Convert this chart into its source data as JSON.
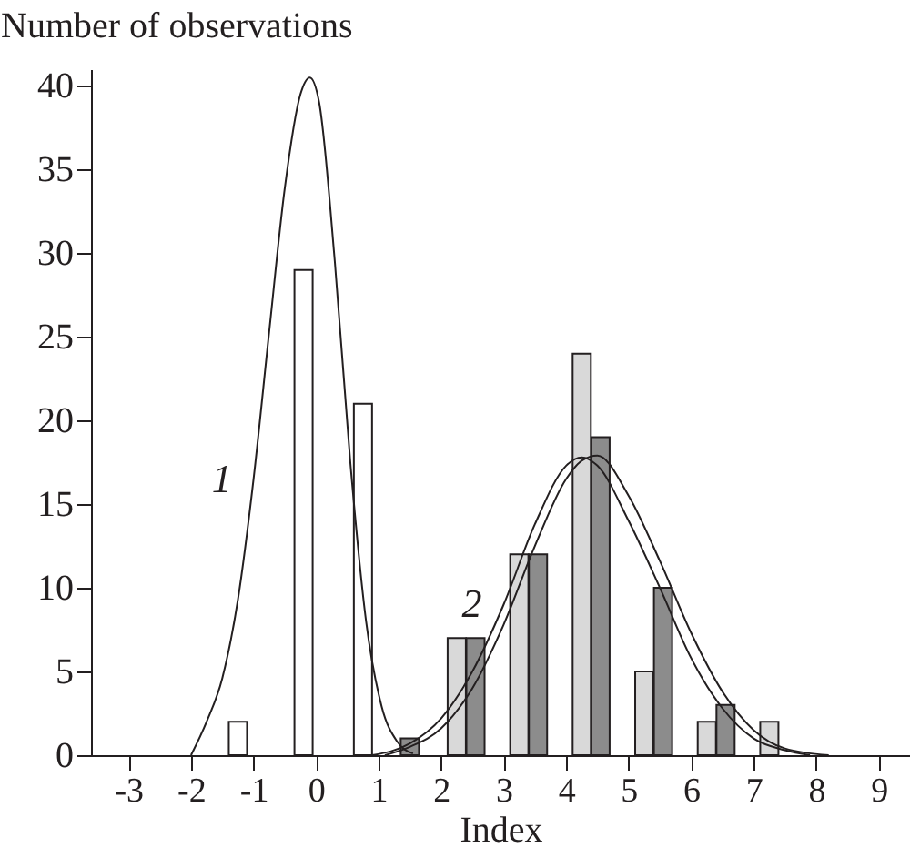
{
  "chart_data": {
    "type": "bar",
    "xlabel": "Index",
    "ylabel": "Number of observations",
    "xlim": [
      -3.6,
      9.5
    ],
    "xticks": [
      -3,
      -2,
      -1,
      0,
      1,
      2,
      3,
      4,
      5,
      6,
      7,
      8,
      9
    ],
    "ylim": [
      0,
      41
    ],
    "yticks": [
      0,
      5,
      10,
      15,
      20,
      25,
      30,
      35,
      40
    ],
    "grid": false,
    "marker": "none",
    "annotations": [
      "1",
      "2"
    ],
    "series": [
      {
        "color": "#ffffff",
        "x": [
          -1.25,
          -0.2,
          0.75
        ],
        "values": [
          2,
          29,
          21
        ]
      },
      {
        "color": "#d9d9d9",
        "x": [
          2.25,
          3.25,
          4.25,
          5.25,
          6.25,
          7.25
        ],
        "values": [
          7,
          12,
          24,
          5,
          2,
          2
        ]
      },
      {
        "color": "#8c8c8c",
        "x": [
          1.5,
          2.55,
          3.55,
          4.55,
          5.55,
          6.55
        ],
        "values": [
          1,
          7,
          12,
          19,
          10,
          3
        ]
      },
      {
        "type": "line",
        "color": "#231f20",
        "x": [
          -2,
          -1.75,
          -1.5,
          -1.25,
          -1,
          -0.75,
          -0.5,
          -0.25,
          -0.1,
          0.05,
          0.3,
          0.55,
          0.8,
          1.05,
          1.3,
          1.55
        ],
        "values": [
          0,
          2,
          4.6,
          9.3,
          16.5,
          25.3,
          33.9,
          39.5,
          40.5,
          39,
          29.5,
          17.4,
          8,
          2.9,
          0.8,
          0.1
        ]
      },
      {
        "type": "line",
        "color": "#231f20",
        "x": [
          0.9,
          1.5,
          2,
          2.5,
          3,
          3.5,
          4,
          4.25,
          4.5,
          5,
          5.5,
          6,
          6.5,
          7,
          7.5,
          7.9
        ],
        "values": [
          0,
          0.7,
          2.2,
          5,
          9,
          13.8,
          17.3,
          17.8,
          17.3,
          14,
          10,
          5.8,
          2.8,
          1,
          0.3,
          0
        ]
      },
      {
        "type": "line",
        "color": "#231f20",
        "x": [
          1.1,
          1.5,
          2,
          2.5,
          3,
          3.5,
          4,
          4.25,
          4.5,
          5,
          5.5,
          6,
          6.5,
          7,
          7.5,
          8.2
        ],
        "values": [
          0,
          0.5,
          1.6,
          4,
          7.8,
          12.5,
          16.5,
          17.6,
          17.9,
          15.5,
          11.6,
          7.3,
          3.8,
          1.5,
          0.4,
          0
        ]
      }
    ]
  }
}
